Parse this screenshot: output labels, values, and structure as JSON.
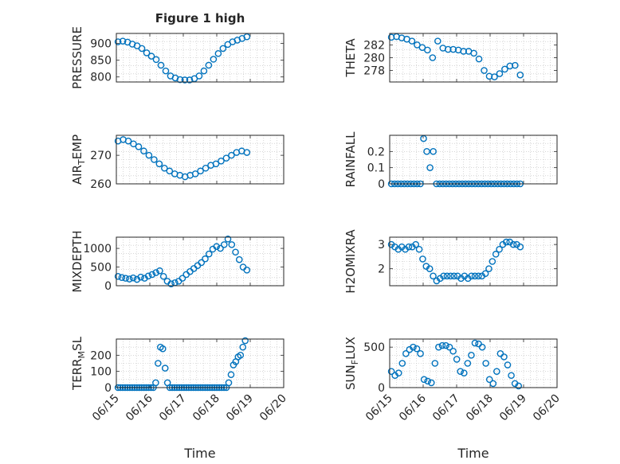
{
  "figure": {
    "title": "Figure 1 high",
    "xlabel": "Time"
  },
  "chart_data": [
    {
      "id": "pressure",
      "type": "scatter",
      "title": "Figure 1 high",
      "ylabel": "PRESSURE",
      "xlim": [
        0,
        5
      ],
      "ylim": [
        785,
        930
      ],
      "yticks": [
        800,
        850,
        900
      ],
      "y": [
        905,
        907,
        904,
        898,
        893,
        885,
        872,
        862,
        852,
        835,
        818,
        803,
        797,
        792,
        791,
        791,
        795,
        803,
        818,
        835,
        853,
        870,
        885,
        897,
        905,
        910,
        915,
        920
      ]
    },
    {
      "id": "theta",
      "type": "scatter",
      "ylabel": "THETA",
      "xlim": [
        0,
        5
      ],
      "ylim": [
        276.2,
        283.8
      ],
      "yticks": [
        278,
        280,
        282
      ],
      "y": [
        283.2,
        283.3,
        283.1,
        282.9,
        282.6,
        282.0,
        281.6,
        281.2,
        280.0,
        282.6,
        281.5,
        281.3,
        281.3,
        281.2,
        281.0,
        281.0,
        280.7,
        279.8,
        278.0,
        277.1,
        277.0,
        277.5,
        278.2,
        278.7,
        278.8,
        277.3
      ]
    },
    {
      "id": "airtemp",
      "type": "scatter",
      "ylabel": "AIR_TEMP",
      "ylabel_display": [
        "AIR",
        "T",
        "EMP"
      ],
      "xlim": [
        0,
        5
      ],
      "ylim": [
        260,
        277
      ],
      "yticks": [
        260,
        270
      ],
      "y": [
        275,
        275.5,
        275,
        274,
        273,
        271.5,
        270,
        268.5,
        267,
        265.5,
        264.5,
        263.5,
        263,
        262.5,
        263,
        263.5,
        264.5,
        265.5,
        266.5,
        267,
        268,
        269,
        270,
        271,
        271.5,
        271
      ]
    },
    {
      "id": "rainfall",
      "type": "scatter",
      "ylabel": "RAINFALL",
      "xlim": [
        0,
        5
      ],
      "ylim": [
        0,
        0.3
      ],
      "yticks": [
        0,
        0.1,
        0.2
      ],
      "y": [
        0,
        0,
        0,
        0,
        0,
        0,
        0,
        0,
        0,
        0,
        0.28,
        0.2,
        0.1,
        0.2,
        0,
        0,
        0,
        0,
        0,
        0,
        0,
        0,
        0,
        0,
        0,
        0,
        0,
        0,
        0,
        0,
        0,
        0,
        0,
        0,
        0,
        0,
        0,
        0,
        0,
        0,
        0
      ]
    },
    {
      "id": "mixdepth",
      "type": "scatter",
      "ylabel": "MIXDEPTH",
      "xlim": [
        0,
        5
      ],
      "ylim": [
        0,
        1300
      ],
      "yticks": [
        0,
        500,
        1000
      ],
      "y": [
        250,
        220,
        200,
        180,
        210,
        170,
        230,
        200,
        260,
        300,
        350,
        400,
        250,
        120,
        50,
        80,
        120,
        200,
        300,
        380,
        460,
        540,
        620,
        720,
        850,
        980,
        1050,
        1000,
        1100,
        1250,
        1100,
        900,
        700,
        500,
        420
      ]
    },
    {
      "id": "h2omixra",
      "type": "scatter",
      "ylabel": "H2OMIXRA",
      "xlim": [
        0,
        5
      ],
      "ylim": [
        1.3,
        3.3
      ],
      "yticks": [
        2,
        3
      ],
      "y": [
        3.0,
        2.9,
        2.8,
        2.9,
        2.8,
        2.9,
        2.9,
        3.0,
        2.8,
        2.4,
        2.1,
        2.0,
        1.7,
        1.5,
        1.6,
        1.7,
        1.7,
        1.7,
        1.7,
        1.7,
        1.6,
        1.7,
        1.6,
        1.7,
        1.7,
        1.7,
        1.7,
        1.8,
        2.0,
        2.3,
        2.6,
        2.8,
        3.0,
        3.1,
        3.1,
        3.0,
        3.0,
        2.9
      ]
    },
    {
      "id": "terrmsl",
      "type": "scatter",
      "ylabel": "TERR_MSL",
      "ylabel_display": [
        "TERR",
        "M",
        "SL"
      ],
      "xlim": [
        0,
        5
      ],
      "ylim": [
        0,
        300
      ],
      "yticks": [
        0,
        100,
        200
      ],
      "y": [
        0,
        0,
        0,
        0,
        0,
        0,
        0,
        0,
        0,
        0,
        0,
        0,
        0,
        0,
        0,
        0,
        30,
        150,
        250,
        240,
        120,
        30,
        0,
        0,
        0,
        0,
        0,
        0,
        0,
        0,
        0,
        0,
        0,
        0,
        0,
        0,
        0,
        0,
        0,
        0,
        0,
        0,
        0,
        0,
        0,
        0,
        0,
        30,
        80,
        140,
        160,
        190,
        200,
        250,
        290
      ]
    },
    {
      "id": "sunflux",
      "type": "scatter",
      "ylabel": "SUN_FLUX",
      "ylabel_display": [
        "SUN",
        "F",
        "LUX"
      ],
      "xlim": [
        0,
        5
      ],
      "ylim": [
        0,
        600
      ],
      "yticks": [
        0,
        500
      ],
      "y": [
        200,
        150,
        180,
        300,
        420,
        470,
        500,
        480,
        420,
        100,
        80,
        60,
        300,
        500,
        520,
        520,
        500,
        450,
        350,
        200,
        180,
        300,
        400,
        550,
        540,
        500,
        300,
        100,
        50,
        200,
        420,
        380,
        280,
        150,
        50,
        20
      ]
    }
  ],
  "xticks": [
    "06/15",
    "06/16",
    "06/17",
    "06/18",
    "06/19",
    "06/20"
  ],
  "colors": {
    "marker": "#0072bd",
    "axis": "#262626",
    "grid": "#bdbdbd"
  }
}
